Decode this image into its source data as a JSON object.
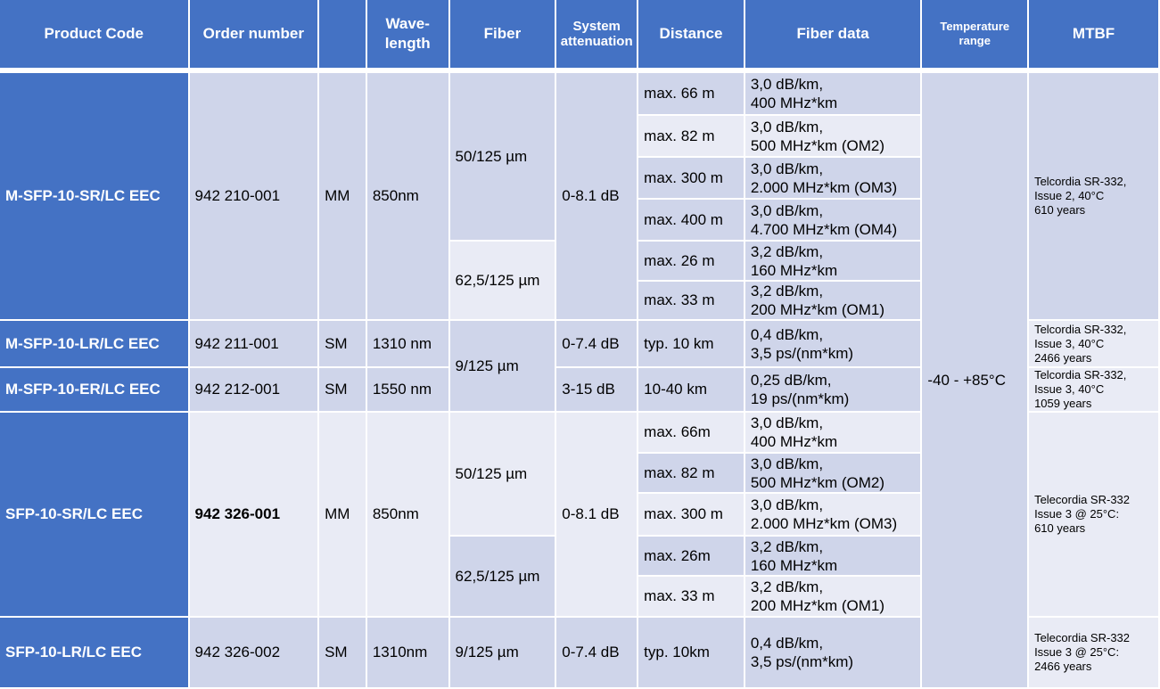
{
  "header": {
    "product_code": "Product Code",
    "order_number": "Order number",
    "type": "",
    "wavelength": [
      "Wave-",
      "length"
    ],
    "fiber": "Fiber",
    "attenuation": [
      "System",
      "attenuation"
    ],
    "distance": "Distance",
    "fiber_data": "Fiber data",
    "temperature": [
      "Temperature",
      "range"
    ],
    "mtbf": "MTBF"
  },
  "temperature_range": "-40 - +85°C",
  "products": [
    {
      "code": "M-SFP-10-SR/LC EEC",
      "order": "942 210-001",
      "mode": "MM",
      "wavelength": "850nm",
      "fibers": [
        "50/125 µm",
        "62,5/125 µm"
      ],
      "attenuation": "0-8.1 dB",
      "rows": [
        {
          "distance": "max. 66 m",
          "data": [
            "3,0 dB/km,",
            "400 MHz*km"
          ]
        },
        {
          "distance": "max. 82 m",
          "data": [
            "3,0 dB/km,",
            "500 MHz*km (OM2)"
          ]
        },
        {
          "distance": "max. 300 m",
          "data": [
            "3,0 dB/km,",
            "2.000 MHz*km (OM3)"
          ]
        },
        {
          "distance": "max. 400 m",
          "data": [
            "3,0 dB/km,",
            "4.700 MHz*km (OM4)"
          ]
        },
        {
          "distance": "max. 26 m",
          "data": [
            "3,2 dB/km,",
            "160 MHz*km"
          ]
        },
        {
          "distance": "max. 33 m",
          "data": [
            "3,2 dB/km,",
            "200 MHz*km (OM1)"
          ]
        }
      ],
      "mtbf": [
        "Telcordia SR-332,",
        "Issue 2, 40°C",
        "610 years"
      ]
    },
    {
      "code": "M-SFP-10-LR/LC EEC",
      "order": "942 211-001",
      "mode": "SM",
      "wavelength": "1310 nm",
      "fiber": "9/125 µm",
      "attenuation": "0-7.4 dB",
      "distance": "typ. 10 km",
      "data": [
        "0,4 dB/km,",
        "3,5 ps/(nm*km)"
      ],
      "mtbf": [
        "Telcordia SR-332,",
        "Issue 3, 40°C",
        "2466 years"
      ]
    },
    {
      "code": "M-SFP-10-ER/LC EEC",
      "order": "942 212-001",
      "mode": "SM",
      "wavelength": "1550 nm",
      "attenuation": "3-15 dB",
      "distance": "10-40 km",
      "data": [
        "0,25 dB/km,",
        "19 ps/(nm*km)"
      ],
      "mtbf": [
        "Telcordia SR-332,",
        "Issue 3, 40°C",
        "1059 years"
      ]
    },
    {
      "code": "SFP-10-SR/LC EEC",
      "order": "942 326-001",
      "mode": "MM",
      "wavelength": "850nm",
      "fibers": [
        "50/125 µm",
        "62,5/125 µm"
      ],
      "attenuation": "0-8.1 dB",
      "rows": [
        {
          "distance": "max. 66m",
          "data": [
            "3,0 dB/km,",
            "400 MHz*km"
          ]
        },
        {
          "distance": "max. 82 m",
          "data": [
            "3,0 dB/km,",
            "500 MHz*km (OM2)"
          ]
        },
        {
          "distance": "max. 300 m",
          "data": [
            "3,0 dB/km,",
            "2.000 MHz*km (OM3)"
          ]
        },
        {
          "distance": "max. 26m",
          "data": [
            "3,2 dB/km,",
            "160 MHz*km"
          ]
        },
        {
          "distance": "max. 33 m",
          "data": [
            "3,2 dB/km,",
            "200 MHz*km (OM1)"
          ]
        }
      ],
      "mtbf": [
        "Telecordia SR-332",
        "Issue 3 @ 25°C:",
        "610 years"
      ]
    },
    {
      "code": "SFP-10-LR/LC EEC",
      "order": "942 326-002",
      "mode": "SM",
      "wavelength": "1310nm",
      "fiber": "9/125 µm",
      "attenuation": "0-7.4 dB",
      "distance": "typ. 10km",
      "data": [
        "0,4 dB/km,",
        "3,5 ps/(nm*km)"
      ],
      "mtbf": [
        "Telecordia SR-332",
        "Issue 3 @ 25°C:",
        "2466 years"
      ]
    }
  ],
  "colors": {
    "header": "#4472C4",
    "band_dark": "#CFD5EA",
    "band_light": "#E9EBF5"
  }
}
